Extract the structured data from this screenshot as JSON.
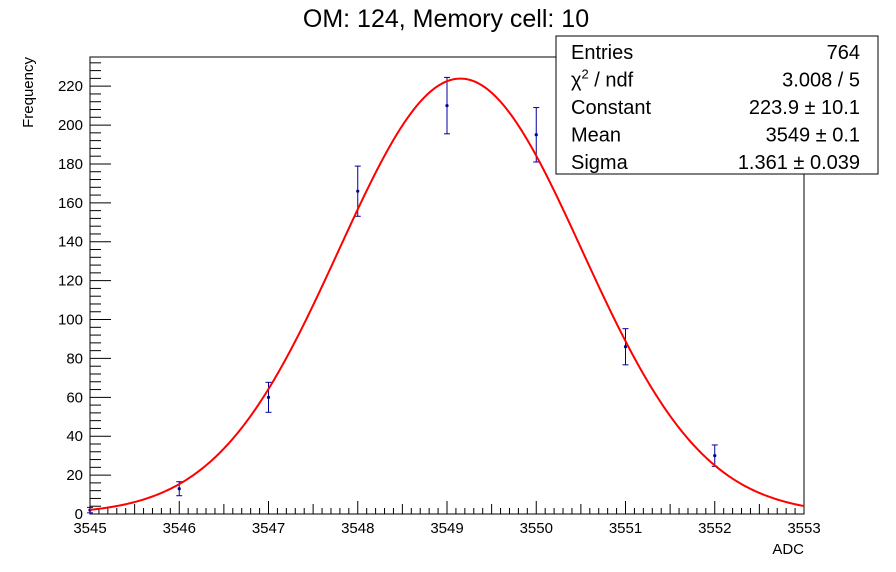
{
  "chart_data": {
    "type": "scatter",
    "title": "OM: 124,   Memory cell: 10",
    "xlabel": "ADC",
    "ylabel": "Frequency",
    "xlim": [
      3545,
      3553
    ],
    "ylim": [
      0,
      235
    ],
    "x_ticks": [
      "3545",
      "3546",
      "3547",
      "3548",
      "3549",
      "3550",
      "3551",
      "3552",
      "3553"
    ],
    "y_ticks": [
      "0",
      "20",
      "40",
      "60",
      "80",
      "100",
      "120",
      "140",
      "160",
      "180",
      "200",
      "220"
    ],
    "grid": false,
    "points": [
      {
        "x": 3545,
        "y": 2,
        "err": 1.4
      },
      {
        "x": 3546,
        "y": 13,
        "err": 3.6
      },
      {
        "x": 3547,
        "y": 60,
        "err": 7.7
      },
      {
        "x": 3548,
        "y": 166,
        "err": 12.9
      },
      {
        "x": 3549,
        "y": 210,
        "err": 14.5
      },
      {
        "x": 3550,
        "y": 195,
        "err": 14.0
      },
      {
        "x": 3551,
        "y": 86,
        "err": 9.3
      },
      {
        "x": 3552,
        "y": 30,
        "err": 5.5
      }
    ],
    "fit": {
      "function": "gaus",
      "constant": 223.9,
      "mean": 3549.15,
      "sigma": 1.361,
      "color": "#ff0000"
    },
    "marker_color": "#000099",
    "stats_box": {
      "position": "top-right",
      "rows": [
        {
          "label": "Entries",
          "sup": "",
          "suffix": "",
          "value": "764"
        },
        {
          "label": "χ",
          "sup": "2",
          "suffix": " / ndf",
          "value": "3.008 / 5"
        },
        {
          "label": "Constant",
          "sup": "",
          "suffix": "",
          "value": "223.9 ± 10.1"
        },
        {
          "label": "Mean",
          "sup": "",
          "suffix": "",
          "value": "3549 ± 0.1"
        },
        {
          "label": "Sigma",
          "sup": "",
          "suffix": "",
          "value": "1.361 ± 0.039"
        }
      ]
    }
  }
}
